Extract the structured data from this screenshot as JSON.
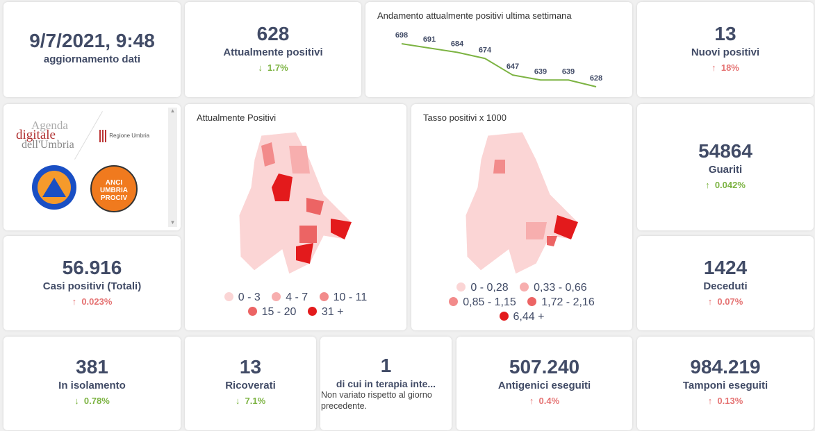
{
  "update": {
    "datetime": "9/7/2021, 9:48",
    "label": "aggiornamento dati"
  },
  "attualmente": {
    "value": "628",
    "label": "Attualmente positivi",
    "delta": "1.7%",
    "dir": "down"
  },
  "nuovi": {
    "value": "13",
    "label": "Nuovi positivi",
    "delta": "18%",
    "dir": "up"
  },
  "guariti": {
    "value": "54864",
    "label": "Guariti",
    "delta": "0.042%",
    "dir": "up"
  },
  "casi": {
    "value": "56.916",
    "label": "Casi positivi (Totali)",
    "delta": "0.023%",
    "dir": "up"
  },
  "deceduti": {
    "value": "1424",
    "label": "Deceduti",
    "delta": "0.07%",
    "dir": "up"
  },
  "isolamento": {
    "value": "381",
    "label": "In isolamento",
    "delta": "0.78%",
    "dir": "down"
  },
  "ricoverati": {
    "value": "13",
    "label": "Ricoverati",
    "delta": "7.1%",
    "dir": "down"
  },
  "terapia": {
    "value": "1",
    "label": "di cui in terapia inte...",
    "note": "Non variato rispetto al giorno precedente."
  },
  "antigenici": {
    "value": "507.240",
    "label": "Antigenici eseguiti",
    "delta": "0.4%",
    "dir": "up"
  },
  "tamponi": {
    "value": "984.219",
    "label": "Tamponi eseguiti",
    "delta": "0.13%",
    "dir": "up"
  },
  "logos": {
    "agenda": "Agenda digitale dell'Umbria",
    "regione": "Regione Umbria",
    "protezione": "Protezione Civile Regione Umbria",
    "anci": "ANCI UMBRIA PROCIV"
  },
  "map1": {
    "title": "Attualmente Positivi",
    "legend": [
      {
        "label": "0 - 3",
        "color": "#fbd5d5"
      },
      {
        "label": "4 - 7",
        "color": "#f7aeae"
      },
      {
        "label": "10 - 11",
        "color": "#f28b8b"
      },
      {
        "label": "15 - 20",
        "color": "#ec6464"
      },
      {
        "label": "31 +",
        "color": "#e31a1c"
      }
    ]
  },
  "map2": {
    "title": "Tasso positivi x 1000",
    "legend": [
      {
        "label": "0 - 0,28",
        "color": "#fbd5d5"
      },
      {
        "label": "0,33 - 0,66",
        "color": "#f7aeae"
      },
      {
        "label": "0,85 - 1,15",
        "color": "#f28b8b"
      },
      {
        "label": "1,72 - 2,16",
        "color": "#ec6464"
      },
      {
        "label": "6,44 +",
        "color": "#e31a1c"
      }
    ]
  },
  "chart_data": {
    "type": "line",
    "title": "Andamento attualmente positivi ultima settimana",
    "values": [
      698,
      691,
      684,
      674,
      647,
      639,
      639,
      628
    ],
    "color": "#7cb342",
    "ylim": [
      620,
      705
    ]
  }
}
